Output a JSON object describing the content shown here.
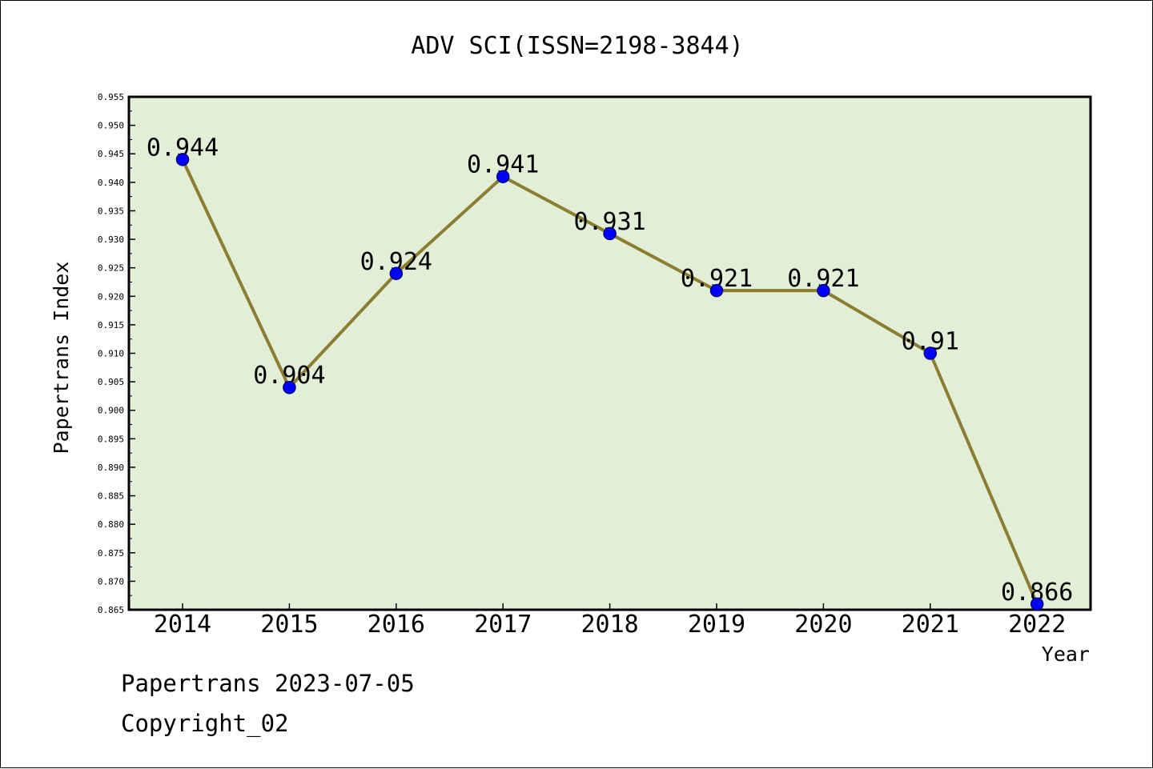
{
  "colors": {
    "plot_background": "#e2efd6",
    "line": "#8b7d32",
    "marker": "#0000ff",
    "marker_edge": "#000080",
    "frame": "#000000"
  },
  "footer": {
    "line1": "Papertrans 2023-07-05",
    "line2": "Copyright_02"
  },
  "chart_data": {
    "type": "line",
    "title": "ADV SCI(ISSN=2198-3844)",
    "xlabel": "Year",
    "ylabel": "Papertrans Index",
    "categories": [
      "2014",
      "2015",
      "2016",
      "2017",
      "2018",
      "2019",
      "2020",
      "2021",
      "2022"
    ],
    "series": [
      {
        "values": [
          0.944,
          0.904,
          0.924,
          0.941,
          0.931,
          0.921,
          0.921,
          0.91,
          0.866
        ],
        "data_labels": [
          "0.944",
          "0.904",
          "0.924",
          "0.941",
          "0.931",
          "0.921",
          "0.921",
          "0.91",
          "0.866"
        ]
      }
    ],
    "ylim": [
      0.865,
      0.955
    ],
    "yticks": [
      "0.865",
      "0.870",
      "0.875",
      "0.880",
      "0.885",
      "0.890",
      "0.895",
      "0.900",
      "0.905",
      "0.910",
      "0.915",
      "0.920",
      "0.925",
      "0.930",
      "0.935",
      "0.940",
      "0.945",
      "0.950",
      "0.955"
    ],
    "grid": false,
    "legend": "none"
  }
}
